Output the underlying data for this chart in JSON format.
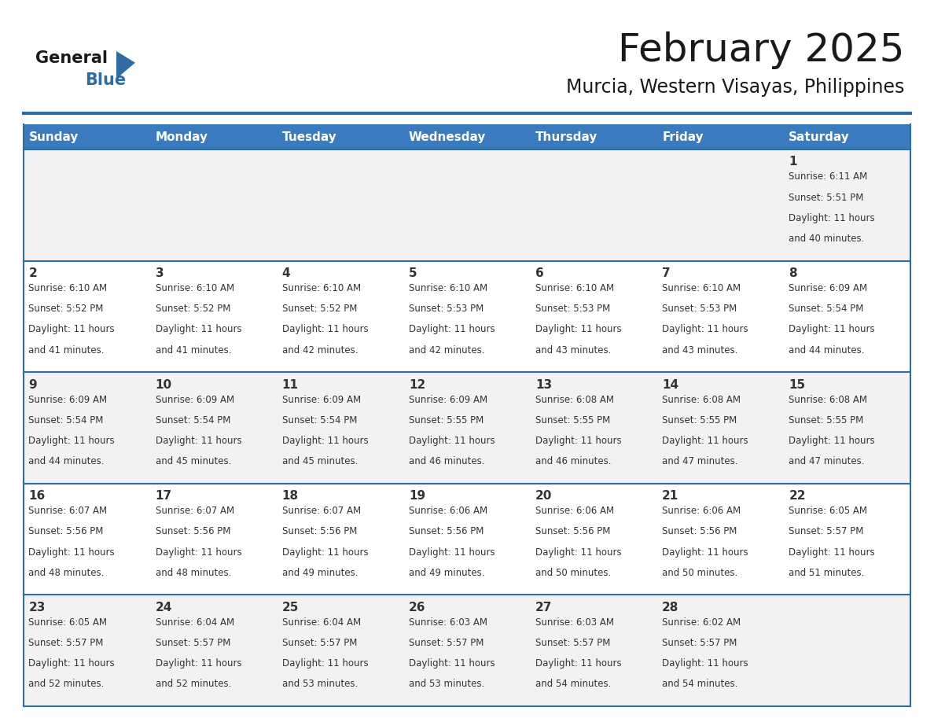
{
  "title": "February 2025",
  "subtitle": "Murcia, Western Visayas, Philippines",
  "header_bg": "#3a7bbf",
  "header_text": "#ffffff",
  "cell_bg_odd": "#f2f2f2",
  "cell_bg_even": "#ffffff",
  "border_color": "#2e6da4",
  "text_color": "#333333",
  "day_headers": [
    "Sunday",
    "Monday",
    "Tuesday",
    "Wednesday",
    "Thursday",
    "Friday",
    "Saturday"
  ],
  "calendar_data": [
    [
      null,
      null,
      null,
      null,
      null,
      null,
      {
        "day": 1,
        "sunrise": "6:11 AM",
        "sunset": "5:51 PM",
        "daylight1": "Daylight: 11 hours",
        "daylight2": "and 40 minutes."
      }
    ],
    [
      {
        "day": 2,
        "sunrise": "6:10 AM",
        "sunset": "5:52 PM",
        "daylight1": "Daylight: 11 hours",
        "daylight2": "and 41 minutes."
      },
      {
        "day": 3,
        "sunrise": "6:10 AM",
        "sunset": "5:52 PM",
        "daylight1": "Daylight: 11 hours",
        "daylight2": "and 41 minutes."
      },
      {
        "day": 4,
        "sunrise": "6:10 AM",
        "sunset": "5:52 PM",
        "daylight1": "Daylight: 11 hours",
        "daylight2": "and 42 minutes."
      },
      {
        "day": 5,
        "sunrise": "6:10 AM",
        "sunset": "5:53 PM",
        "daylight1": "Daylight: 11 hours",
        "daylight2": "and 42 minutes."
      },
      {
        "day": 6,
        "sunrise": "6:10 AM",
        "sunset": "5:53 PM",
        "daylight1": "Daylight: 11 hours",
        "daylight2": "and 43 minutes."
      },
      {
        "day": 7,
        "sunrise": "6:10 AM",
        "sunset": "5:53 PM",
        "daylight1": "Daylight: 11 hours",
        "daylight2": "and 43 minutes."
      },
      {
        "day": 8,
        "sunrise": "6:09 AM",
        "sunset": "5:54 PM",
        "daylight1": "Daylight: 11 hours",
        "daylight2": "and 44 minutes."
      }
    ],
    [
      {
        "day": 9,
        "sunrise": "6:09 AM",
        "sunset": "5:54 PM",
        "daylight1": "Daylight: 11 hours",
        "daylight2": "and 44 minutes."
      },
      {
        "day": 10,
        "sunrise": "6:09 AM",
        "sunset": "5:54 PM",
        "daylight1": "Daylight: 11 hours",
        "daylight2": "and 45 minutes."
      },
      {
        "day": 11,
        "sunrise": "6:09 AM",
        "sunset": "5:54 PM",
        "daylight1": "Daylight: 11 hours",
        "daylight2": "and 45 minutes."
      },
      {
        "day": 12,
        "sunrise": "6:09 AM",
        "sunset": "5:55 PM",
        "daylight1": "Daylight: 11 hours",
        "daylight2": "and 46 minutes."
      },
      {
        "day": 13,
        "sunrise": "6:08 AM",
        "sunset": "5:55 PM",
        "daylight1": "Daylight: 11 hours",
        "daylight2": "and 46 minutes."
      },
      {
        "day": 14,
        "sunrise": "6:08 AM",
        "sunset": "5:55 PM",
        "daylight1": "Daylight: 11 hours",
        "daylight2": "and 47 minutes."
      },
      {
        "day": 15,
        "sunrise": "6:08 AM",
        "sunset": "5:55 PM",
        "daylight1": "Daylight: 11 hours",
        "daylight2": "and 47 minutes."
      }
    ],
    [
      {
        "day": 16,
        "sunrise": "6:07 AM",
        "sunset": "5:56 PM",
        "daylight1": "Daylight: 11 hours",
        "daylight2": "and 48 minutes."
      },
      {
        "day": 17,
        "sunrise": "6:07 AM",
        "sunset": "5:56 PM",
        "daylight1": "Daylight: 11 hours",
        "daylight2": "and 48 minutes."
      },
      {
        "day": 18,
        "sunrise": "6:07 AM",
        "sunset": "5:56 PM",
        "daylight1": "Daylight: 11 hours",
        "daylight2": "and 49 minutes."
      },
      {
        "day": 19,
        "sunrise": "6:06 AM",
        "sunset": "5:56 PM",
        "daylight1": "Daylight: 11 hours",
        "daylight2": "and 49 minutes."
      },
      {
        "day": 20,
        "sunrise": "6:06 AM",
        "sunset": "5:56 PM",
        "daylight1": "Daylight: 11 hours",
        "daylight2": "and 50 minutes."
      },
      {
        "day": 21,
        "sunrise": "6:06 AM",
        "sunset": "5:56 PM",
        "daylight1": "Daylight: 11 hours",
        "daylight2": "and 50 minutes."
      },
      {
        "day": 22,
        "sunrise": "6:05 AM",
        "sunset": "5:57 PM",
        "daylight1": "Daylight: 11 hours",
        "daylight2": "and 51 minutes."
      }
    ],
    [
      {
        "day": 23,
        "sunrise": "6:05 AM",
        "sunset": "5:57 PM",
        "daylight1": "Daylight: 11 hours",
        "daylight2": "and 52 minutes."
      },
      {
        "day": 24,
        "sunrise": "6:04 AM",
        "sunset": "5:57 PM",
        "daylight1": "Daylight: 11 hours",
        "daylight2": "and 52 minutes."
      },
      {
        "day": 25,
        "sunrise": "6:04 AM",
        "sunset": "5:57 PM",
        "daylight1": "Daylight: 11 hours",
        "daylight2": "and 53 minutes."
      },
      {
        "day": 26,
        "sunrise": "6:03 AM",
        "sunset": "5:57 PM",
        "daylight1": "Daylight: 11 hours",
        "daylight2": "and 53 minutes."
      },
      {
        "day": 27,
        "sunrise": "6:03 AM",
        "sunset": "5:57 PM",
        "daylight1": "Daylight: 11 hours",
        "daylight2": "and 54 minutes."
      },
      {
        "day": 28,
        "sunrise": "6:02 AM",
        "sunset": "5:57 PM",
        "daylight1": "Daylight: 11 hours",
        "daylight2": "and 54 minutes."
      },
      null
    ]
  ],
  "logo_general_color": "#1a1a1a",
  "logo_blue_color": "#2e6da4",
  "logo_triangle_color": "#2e6da4",
  "fig_width": 11.88,
  "fig_height": 9.18,
  "dpi": 100
}
